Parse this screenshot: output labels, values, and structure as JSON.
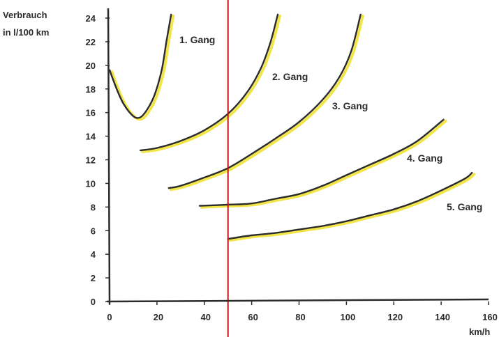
{
  "chart_data": {
    "type": "line",
    "ylabel_line1": "Verbrauch",
    "ylabel_line2": "in l/100 km",
    "xlabel": "km/h",
    "xlim": [
      0,
      160
    ],
    "ylim": [
      0,
      24
    ],
    "x_ticks": [
      0,
      20,
      40,
      60,
      80,
      100,
      120,
      140,
      160
    ],
    "y_ticks": [
      0,
      2,
      4,
      6,
      8,
      10,
      12,
      14,
      16,
      18,
      20,
      22,
      24
    ],
    "grid": false,
    "reference_line": {
      "x": 50,
      "color": "#c0141c"
    },
    "colors": {
      "curve": "#2b2b2b",
      "curve_shadow": "#f2e54a",
      "axis": "#2b2b2b",
      "text": "#2b2b2b"
    },
    "series": [
      {
        "name": "1. Gang",
        "points": [
          [
            0,
            19.6
          ],
          [
            3,
            18
          ],
          [
            6,
            16.7
          ],
          [
            10,
            15.7
          ],
          [
            13,
            15.6
          ],
          [
            16,
            16.3
          ],
          [
            19,
            17.5
          ],
          [
            22,
            19.6
          ],
          [
            24,
            22
          ],
          [
            26,
            24.3
          ]
        ]
      },
      {
        "name": "2. Gang",
        "points": [
          [
            13,
            12.8
          ],
          [
            20,
            13
          ],
          [
            30,
            13.6
          ],
          [
            40,
            14.5
          ],
          [
            50,
            15.9
          ],
          [
            58,
            17.7
          ],
          [
            64,
            19.8
          ],
          [
            68,
            22
          ],
          [
            71,
            24.3
          ]
        ]
      },
      {
        "name": "3. Gang",
        "points": [
          [
            25,
            9.6
          ],
          [
            30,
            9.8
          ],
          [
            40,
            10.5
          ],
          [
            50,
            11.3
          ],
          [
            60,
            12.5
          ],
          [
            70,
            13.8
          ],
          [
            80,
            15.2
          ],
          [
            90,
            17.1
          ],
          [
            97,
            19
          ],
          [
            102,
            21.2
          ],
          [
            106,
            24.3
          ]
        ]
      },
      {
        "name": "4. Gang",
        "points": [
          [
            38,
            8.1
          ],
          [
            50,
            8.2
          ],
          [
            60,
            8.3
          ],
          [
            70,
            8.7
          ],
          [
            80,
            9.1
          ],
          [
            90,
            9.8
          ],
          [
            100,
            10.7
          ],
          [
            110,
            11.6
          ],
          [
            120,
            12.5
          ],
          [
            130,
            13.6
          ],
          [
            141,
            15.4
          ]
        ]
      },
      {
        "name": "5. Gang",
        "points": [
          [
            50,
            5.3
          ],
          [
            60,
            5.6
          ],
          [
            70,
            5.8
          ],
          [
            80,
            6.1
          ],
          [
            90,
            6.4
          ],
          [
            100,
            6.8
          ],
          [
            110,
            7.3
          ],
          [
            120,
            7.8
          ],
          [
            130,
            8.5
          ],
          [
            140,
            9.4
          ],
          [
            150,
            10.4
          ],
          [
            153,
            10.9
          ]
        ]
      }
    ]
  }
}
